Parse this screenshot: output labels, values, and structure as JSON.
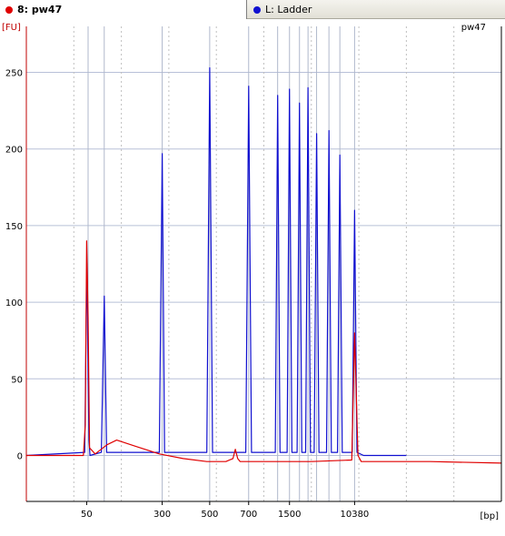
{
  "tabs": [
    {
      "label": "8: pw47",
      "dot_color": "#e00000",
      "active": true
    },
    {
      "label": "L: Ladder",
      "dot_color": "#1010d0",
      "active": false
    }
  ],
  "chart_data": {
    "type": "line",
    "title": "pw47",
    "ylabel": "[FU]",
    "xlabel": "[bp]",
    "ylim": [
      -30,
      280
    ],
    "yticks": [
      0,
      50,
      100,
      150,
      200,
      250
    ],
    "xlim": [
      0,
      100
    ],
    "xticks": [
      {
        "label": "50",
        "pos": 12.7
      },
      {
        "label": "300",
        "pos": 28.6
      },
      {
        "label": "500",
        "pos": 38.6
      },
      {
        "label": "700",
        "pos": 46.8
      },
      {
        "label": "1500",
        "pos": 55.4
      },
      {
        "label": "10380",
        "pos": 69.1
      }
    ],
    "ladder_lines": [
      13.0,
      16.4,
      28.6,
      38.6,
      46.8,
      52.9,
      55.4,
      57.5,
      59.3,
      61.1,
      63.7,
      66.0,
      69.1
    ],
    "grid": true,
    "series": [
      {
        "name": "Ladder",
        "color": "#1010d0",
        "x": [
          0,
          12.3,
          12.6,
          12.8,
          13.0,
          13.2,
          13.4,
          15.8,
          16.4,
          16.9,
          28.0,
          28.6,
          29.1,
          38.0,
          38.6,
          39.2,
          46.2,
          46.8,
          47.4,
          52.4,
          52.9,
          53.4,
          54.9,
          55.4,
          55.9,
          57.0,
          57.5,
          58.0,
          58.8,
          59.3,
          59.8,
          60.6,
          61.1,
          61.6,
          63.2,
          63.7,
          64.2,
          65.5,
          66.0,
          66.5,
          68.6,
          69.1,
          69.6,
          71,
          80
        ],
        "y": [
          0,
          2,
          90,
          125,
          50,
          10,
          0,
          2,
          104,
          2,
          2,
          197,
          2,
          2,
          253,
          2,
          2,
          241,
          2,
          2,
          235,
          2,
          2,
          239,
          2,
          2,
          230,
          2,
          2,
          240,
          2,
          2,
          210,
          2,
          2,
          212,
          2,
          2,
          196,
          2,
          2,
          160,
          2,
          0,
          0
        ]
      },
      {
        "name": "pw47",
        "color": "#e00000",
        "x": [
          0,
          12.0,
          12.4,
          12.7,
          13.0,
          13.3,
          14.5,
          17,
          19,
          23,
          28,
          33,
          38,
          40,
          42,
          43.5,
          44,
          44.5,
          45,
          60,
          68.5,
          69.1,
          69.8,
          70.5,
          75,
          85,
          100
        ],
        "y": [
          0,
          0,
          20,
          140,
          90,
          5,
          1,
          7,
          10,
          6,
          1,
          -2,
          -4,
          -4,
          -4,
          -2,
          4,
          -2,
          -4,
          -4,
          -3,
          80,
          0,
          -4,
          -4,
          -4,
          -5
        ]
      }
    ]
  }
}
